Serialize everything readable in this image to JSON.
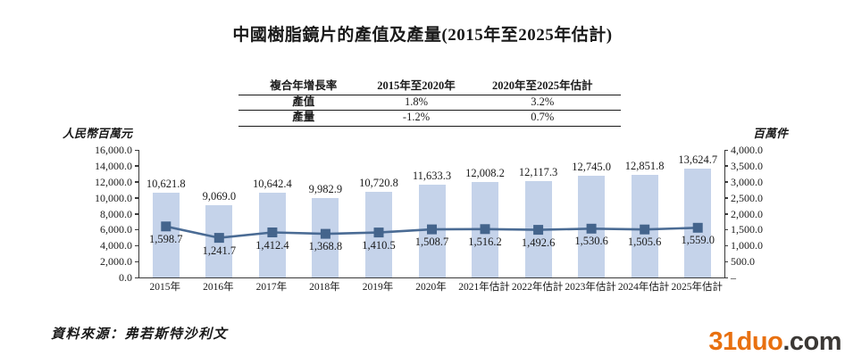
{
  "page": {
    "title": "中國樹脂鏡片的產值及產量(2015年至2025年估計)",
    "source": "資料來源：弗若斯特沙利文"
  },
  "cagr_table": {
    "headers": [
      "複合年增長率",
      "2015年至2020年",
      "2020年至2025年估計"
    ],
    "rows": [
      {
        "label": "產值",
        "values": [
          "1.8%",
          "3.2%"
        ]
      },
      {
        "label": "產量",
        "values": [
          "-1.2%",
          "0.7%"
        ]
      }
    ]
  },
  "chart_data": {
    "type": "bar",
    "subtype": "bar-line-combo",
    "grid": false,
    "legend": "none",
    "categories": [
      "2015年",
      "2016年",
      "2017年",
      "2018年",
      "2019年",
      "2020年",
      "2021年估計",
      "2022年估計",
      "2023年估計",
      "2024年估計",
      "2025年估計"
    ],
    "series": [
      {
        "name": "產值",
        "type": "bar",
        "axis": "left",
        "values": [
          10621.8,
          9069.0,
          10642.4,
          9982.9,
          10720.8,
          11633.3,
          12008.2,
          12117.3,
          12745.0,
          12851.8,
          13624.7
        ],
        "labels": [
          "10,621.8",
          "9,069.0",
          "10,642.4",
          "9,982.9",
          "10,720.8",
          "11,633.3",
          "12,008.2",
          "12,117.3",
          "12,745.0",
          "12,851.8",
          "13,624.7"
        ],
        "color": "#c5d3ea"
      },
      {
        "name": "產量",
        "type": "line",
        "axis": "right",
        "values": [
          1598.7,
          1241.7,
          1412.4,
          1368.8,
          1410.5,
          1508.7,
          1516.2,
          1492.6,
          1530.6,
          1505.6,
          1559.0
        ],
        "labels": [
          "1,598.7",
          "1,241.7",
          "1,412.4",
          "1,368.8",
          "1,410.5",
          "1,508.7",
          "1,516.2",
          "1,492.6",
          "1,530.6",
          "1,505.6",
          "1,559.0"
        ],
        "color": "#4a6b94",
        "marker": "square",
        "marker_color": "#44648c"
      }
    ],
    "left_axis": {
      "label": "人民幣百萬元",
      "min": 0,
      "max": 16000,
      "step": 2000,
      "ticks": [
        "16,000.0",
        "14,000.0",
        "12,000.0",
        "10,000.0",
        "8,000.0",
        "6,000.0",
        "4,000.0",
        "2,000.0",
        "0.0"
      ]
    },
    "right_axis": {
      "label": "百萬件",
      "min": 0,
      "max": 4000,
      "step": 500,
      "ticks": [
        "4,000.0",
        "3,500.0",
        "3,000.0",
        "2,500.0",
        "2,000.0",
        "1,500.0",
        "1,000.0",
        "500.0",
        "–"
      ]
    }
  },
  "watermark": {
    "brand": "31duo",
    "suffix": ".com",
    "brand_color": "#e87010",
    "suffix_color": "#3b3835"
  }
}
